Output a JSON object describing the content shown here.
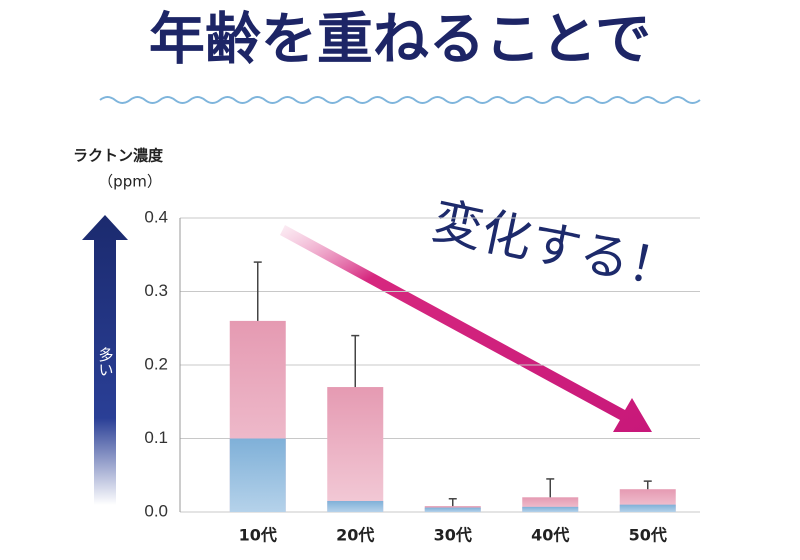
{
  "chart_data": {
    "type": "bar",
    "title": "年齢を重ねることで",
    "y_label": "ラクトン濃度",
    "y_unit": "（ppm）",
    "annotation": "変化する！",
    "arrow_label": "多い",
    "categories": [
      "10代",
      "20代",
      "30代",
      "40代",
      "50代"
    ],
    "series": [
      {
        "color": "#e8a3b8",
        "values": [
          0.26,
          0.17,
          0.008,
          0.02,
          0.031
        ],
        "errors": [
          0.08,
          0.07,
          0.01,
          0.025,
          0.011
        ]
      },
      {
        "color": "#86b4da",
        "values": [
          0.1,
          0.015,
          0.006,
          0.007,
          0.01
        ]
      }
    ],
    "ylim": [
      0,
      0.4
    ],
    "yticks": [
      {
        "value": 0,
        "label": "0.0"
      },
      0.1,
      0.2,
      0.3,
      0.4
    ],
    "grid": true
  }
}
